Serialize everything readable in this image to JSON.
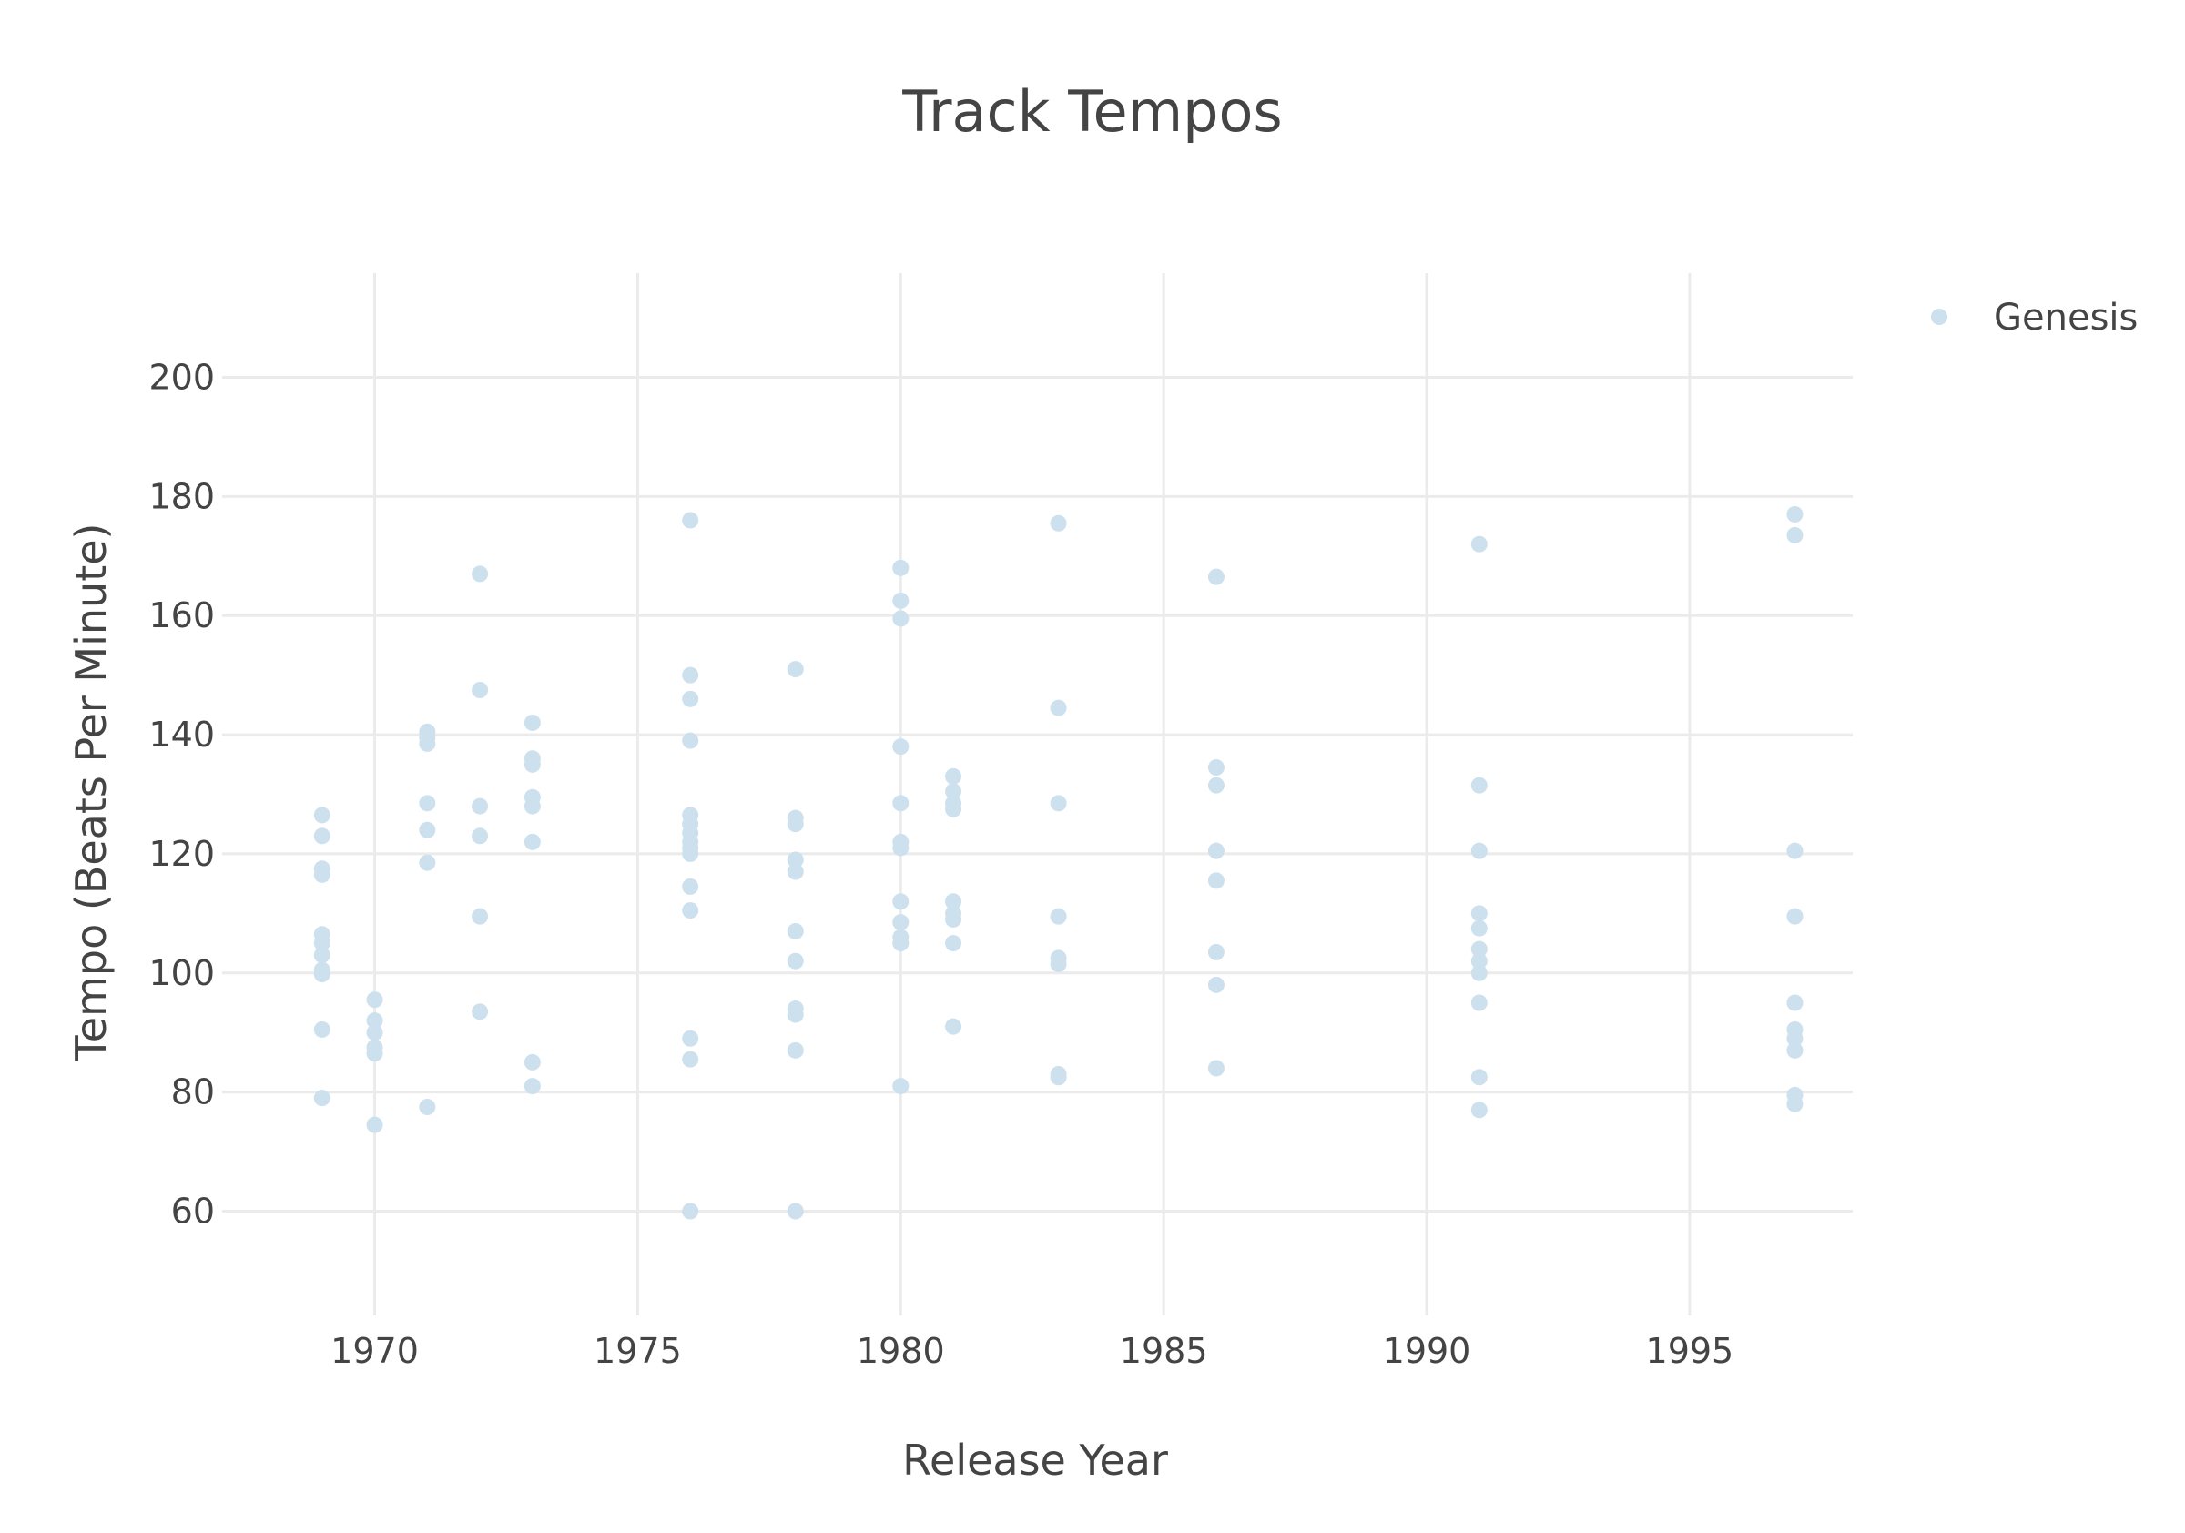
{
  "chart_data": {
    "type": "scatter",
    "title": "Track Tempos",
    "xlabel": "Release Year",
    "ylabel": "Tempo (Beats Per Minute)",
    "xlim": [
      1967.1,
      1998.1
    ],
    "ylim": [
      42.5,
      217.5
    ],
    "x_ticks": [
      1970,
      1975,
      1980,
      1985,
      1990,
      1995
    ],
    "y_ticks": [
      60,
      80,
      100,
      120,
      140,
      160,
      180,
      200
    ],
    "grid": true,
    "legend_position": "top-right",
    "series": [
      {
        "name": "Genesis",
        "color": "#cde0ee",
        "points": [
          [
            1969,
            126.5
          ],
          [
            1969,
            123
          ],
          [
            1969,
            117.5
          ],
          [
            1969,
            116.5
          ],
          [
            1969,
            106.5
          ],
          [
            1969,
            105
          ],
          [
            1969,
            103
          ],
          [
            1969,
            100.5
          ],
          [
            1969,
            99.8
          ],
          [
            1969,
            90.5
          ],
          [
            1969,
            79
          ],
          [
            1970,
            95.5
          ],
          [
            1970,
            92
          ],
          [
            1970,
            90
          ],
          [
            1970,
            87.5
          ],
          [
            1970,
            86.5
          ],
          [
            1970,
            74.5
          ],
          [
            1971,
            140.5
          ],
          [
            1971,
            139.5
          ],
          [
            1971,
            138.5
          ],
          [
            1971,
            128.5
          ],
          [
            1971,
            124
          ],
          [
            1971,
            118.5
          ],
          [
            1971,
            77.5
          ],
          [
            1972,
            167
          ],
          [
            1972,
            147.5
          ],
          [
            1972,
            128
          ],
          [
            1972,
            123
          ],
          [
            1972,
            109.5
          ],
          [
            1972,
            93.5
          ],
          [
            1973,
            142
          ],
          [
            1973,
            136
          ],
          [
            1973,
            135
          ],
          [
            1973,
            129.5
          ],
          [
            1973,
            128
          ],
          [
            1973,
            122
          ],
          [
            1973,
            85
          ],
          [
            1973,
            81
          ],
          [
            1976,
            176
          ],
          [
            1976,
            150
          ],
          [
            1976,
            146
          ],
          [
            1976,
            139
          ],
          [
            1976,
            126.5
          ],
          [
            1976,
            125
          ],
          [
            1976,
            123.5
          ],
          [
            1976,
            122
          ],
          [
            1976,
            121
          ],
          [
            1976,
            120
          ],
          [
            1976,
            114.5
          ],
          [
            1976,
            110.5
          ],
          [
            1976,
            89
          ],
          [
            1976,
            85.5
          ],
          [
            1976,
            60
          ],
          [
            1978,
            151
          ],
          [
            1978,
            126
          ],
          [
            1978,
            125
          ],
          [
            1978,
            119
          ],
          [
            1978,
            117
          ],
          [
            1978,
            107
          ],
          [
            1978,
            102
          ],
          [
            1978,
            94
          ],
          [
            1978,
            93
          ],
          [
            1978,
            87
          ],
          [
            1978,
            60
          ],
          [
            1980,
            168
          ],
          [
            1980,
            162.5
          ],
          [
            1980,
            159.5
          ],
          [
            1980,
            138
          ],
          [
            1980,
            128.5
          ],
          [
            1980,
            122
          ],
          [
            1980,
            121
          ],
          [
            1980,
            112
          ],
          [
            1980,
            108.5
          ],
          [
            1980,
            106
          ],
          [
            1980,
            105
          ],
          [
            1980,
            81
          ],
          [
            1981,
            133
          ],
          [
            1981,
            130.5
          ],
          [
            1981,
            128.5
          ],
          [
            1981,
            127.5
          ],
          [
            1981,
            112
          ],
          [
            1981,
            110
          ],
          [
            1981,
            109
          ],
          [
            1981,
            105
          ],
          [
            1981,
            91
          ],
          [
            1983,
            175.5
          ],
          [
            1983,
            144.5
          ],
          [
            1983,
            128.5
          ],
          [
            1983,
            109.5
          ],
          [
            1983,
            102.5
          ],
          [
            1983,
            101.5
          ],
          [
            1983,
            83
          ],
          [
            1983,
            82.5
          ],
          [
            1986,
            166.5
          ],
          [
            1986,
            134.5
          ],
          [
            1986,
            131.5
          ],
          [
            1986,
            120.5
          ],
          [
            1986,
            115.5
          ],
          [
            1986,
            103.5
          ],
          [
            1986,
            98
          ],
          [
            1986,
            84
          ],
          [
            1991,
            172
          ],
          [
            1991,
            131.5
          ],
          [
            1991,
            120.5
          ],
          [
            1991,
            110
          ],
          [
            1991,
            107.5
          ],
          [
            1991,
            104
          ],
          [
            1991,
            102
          ],
          [
            1991,
            100
          ],
          [
            1991,
            95
          ],
          [
            1991,
            82.5
          ],
          [
            1991,
            77
          ],
          [
            1997,
            177
          ],
          [
            1997,
            173.5
          ],
          [
            1997,
            120.5
          ],
          [
            1997,
            109.5
          ],
          [
            1997,
            95
          ],
          [
            1997,
            90.5
          ],
          [
            1997,
            89
          ],
          [
            1997,
            87
          ],
          [
            1997,
            79.5
          ],
          [
            1997,
            78
          ]
        ]
      }
    ]
  }
}
